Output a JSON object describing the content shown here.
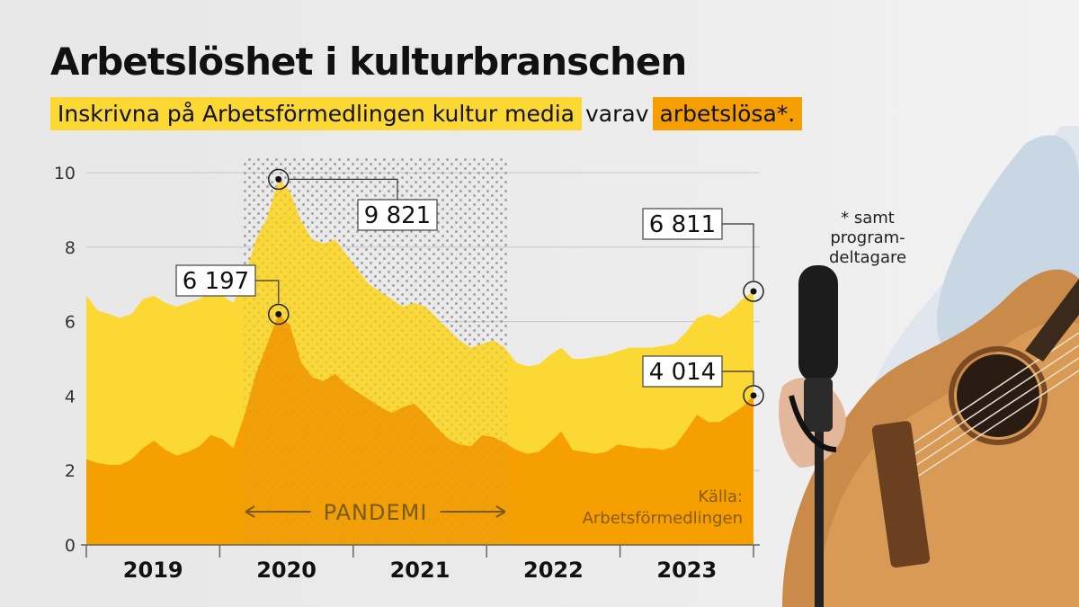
{
  "title": "Arbetslöshet i kulturbranschen",
  "subtitle": {
    "part1": "Inskrivna på Arbetsförmedlingen kultur media",
    "part2": "varav",
    "part3": "arbetslösa*."
  },
  "footnote": "* samt program-deltagare",
  "source": {
    "line1": "Källa:",
    "line2": "Arbetsförmedlingen"
  },
  "pandemic_label": "PANDEMI",
  "colors": {
    "registered": "#fcd835",
    "unemployed": "#f5a000",
    "text": "#111111"
  },
  "callouts": [
    {
      "label": "9 821",
      "series": "registered",
      "index": 17
    },
    {
      "label": "6 197",
      "series": "unemployed",
      "index": 17
    },
    {
      "label": "6 811",
      "series": "registered",
      "index": 59
    },
    {
      "label": "4 014",
      "series": "unemployed",
      "index": 59
    }
  ],
  "chart_data": {
    "type": "area",
    "title": "Arbetslöshet i kulturbranschen",
    "ylabel": "",
    "xlabel": "",
    "y_unit": "thousands",
    "ylim": [
      0,
      10
    ],
    "y_ticks": [
      "0",
      "2",
      "4",
      "6",
      "8",
      "10"
    ],
    "x_ticks": [
      "2019",
      "2020",
      "2021",
      "2022",
      "2023"
    ],
    "x_start": "2019-01",
    "x_end": "2023-12",
    "pandemic_start": "2020-03",
    "pandemic_end": "2022-03",
    "grid": true,
    "series": [
      {
        "name": "Inskrivna på Arbetsförmedlingen kultur media",
        "values": [
          6.7,
          6.3,
          6.2,
          6.1,
          6.2,
          6.6,
          6.7,
          6.5,
          6.4,
          6.5,
          6.6,
          6.8,
          6.7,
          6.5,
          7.2,
          8.2,
          8.8,
          9.821,
          9.5,
          8.7,
          8.2,
          8.1,
          8.2,
          7.8,
          7.4,
          7.0,
          6.8,
          6.6,
          6.4,
          6.5,
          6.4,
          6.1,
          5.8,
          5.5,
          5.3,
          5.4,
          5.5,
          5.3,
          4.9,
          4.8,
          4.85,
          5.1,
          5.3,
          5.0,
          5.0,
          5.05,
          5.1,
          5.2,
          5.3,
          5.3,
          5.3,
          5.35,
          5.4,
          5.7,
          6.1,
          6.2,
          6.1,
          6.3,
          6.6,
          6.811
        ]
      },
      {
        "name": "arbetslösa*",
        "values": [
          2.3,
          2.2,
          2.15,
          2.15,
          2.3,
          2.6,
          2.8,
          2.55,
          2.4,
          2.5,
          2.65,
          2.95,
          2.85,
          2.6,
          3.5,
          4.6,
          5.4,
          6.197,
          5.9,
          4.9,
          4.5,
          4.4,
          4.6,
          4.3,
          4.1,
          3.9,
          3.7,
          3.55,
          3.7,
          3.8,
          3.5,
          3.15,
          2.85,
          2.7,
          2.65,
          2.95,
          2.9,
          2.75,
          2.55,
          2.45,
          2.5,
          2.75,
          3.05,
          2.55,
          2.5,
          2.45,
          2.5,
          2.7,
          2.65,
          2.6,
          2.6,
          2.55,
          2.65,
          3.05,
          3.5,
          3.3,
          3.3,
          3.5,
          3.7,
          4.014
        ]
      }
    ]
  }
}
